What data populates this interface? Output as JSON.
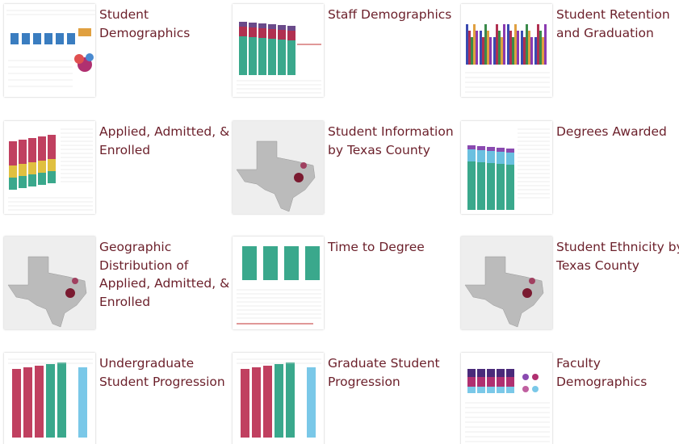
{
  "tiles": [
    {
      "title": [
        "Student",
        "Demographics"
      ]
    },
    {
      "title": [
        "Staff Demographics"
      ]
    },
    {
      "title": [
        "Student Retention",
        "and Graduation"
      ]
    },
    {
      "title": [
        "Applied, Admitted, &",
        "Enrolled"
      ]
    },
    {
      "title": [
        "Student Information",
        "by Texas County"
      ]
    },
    {
      "title": [
        "Degrees Awarded"
      ]
    },
    {
      "title": [
        "Geographic",
        "Distribution of",
        "Applied, Admitted, &",
        "Enrolled"
      ]
    },
    {
      "title": [
        "Time to Degree"
      ]
    },
    {
      "title": [
        "Student Ethnicity by",
        "Texas County"
      ]
    },
    {
      "title": [
        "Undergraduate",
        "Student Progression"
      ]
    },
    {
      "title": [
        "Graduate Student",
        "Progression"
      ]
    },
    {
      "title": [
        "Faculty",
        "Demographics"
      ]
    }
  ]
}
